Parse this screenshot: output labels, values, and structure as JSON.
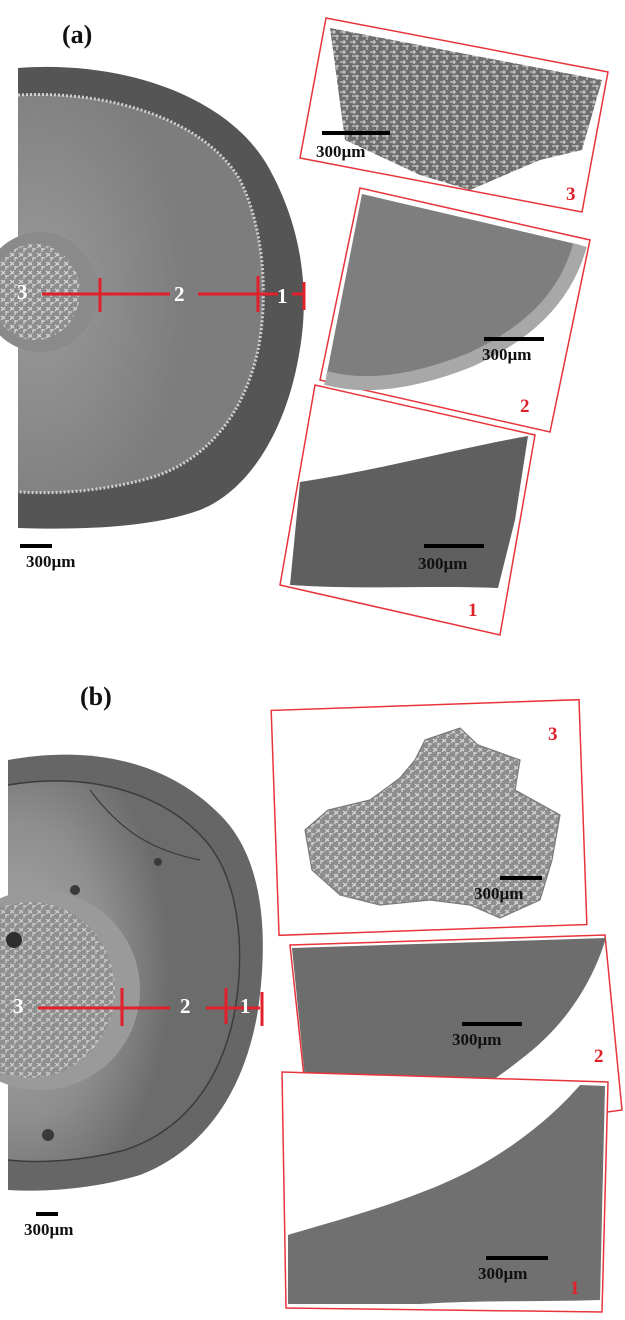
{
  "panels": [
    {
      "label": "(a)",
      "main_scale": "300µm",
      "path_numbers": [
        "3",
        "2",
        "1"
      ],
      "insets": [
        {
          "number": "3",
          "scale": "300µm"
        },
        {
          "number": "2",
          "scale": "300µm"
        },
        {
          "number": "1",
          "scale": "300µm"
        }
      ]
    },
    {
      "label": "(b)",
      "main_scale": "300µm",
      "path_numbers": [
        "3",
        "2",
        "1"
      ],
      "insets": [
        {
          "number": "3",
          "scale": "300µm"
        },
        {
          "number": "2",
          "scale": "300µm"
        },
        {
          "number": "1",
          "scale": "300µm"
        }
      ]
    }
  ],
  "colors": {
    "marker_red": "#e0202a",
    "frame_red": "#e8343c",
    "scale_black": "#000000",
    "sample_outer": "#505050",
    "sample_mid": "#8a8a8a",
    "sample_core": "#b8b8b8"
  }
}
